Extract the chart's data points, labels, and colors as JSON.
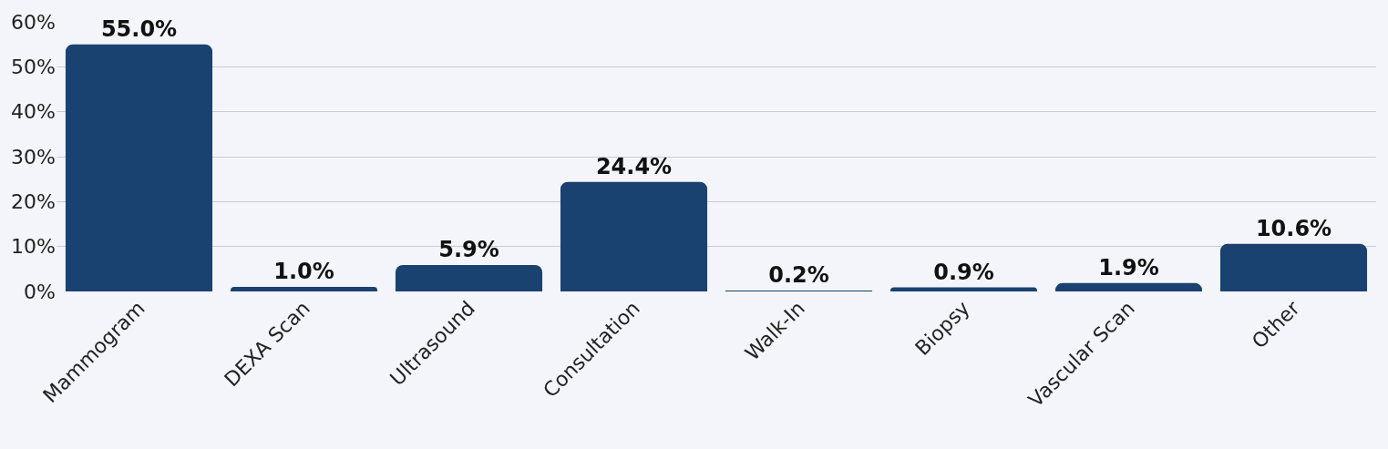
{
  "chart_data": {
    "type": "bar",
    "categories": [
      "Mammogram",
      "DEXA Scan",
      "Ultrasound",
      "Consultation",
      "Walk-In",
      "Biopsy",
      "Vascular Scan",
      "Other"
    ],
    "values": [
      55.0,
      1.0,
      5.9,
      24.4,
      0.2,
      0.9,
      1.9,
      10.6
    ],
    "value_labels": [
      "55.0%",
      "1.0%",
      "5.9%",
      "24.4%",
      "0.2%",
      "0.9%",
      "1.9%",
      "10.6%"
    ],
    "color": "#1a4270",
    "ylim": [
      0,
      60
    ],
    "yticks": [
      {
        "value": 0,
        "label": "0%"
      },
      {
        "value": 10,
        "label": "10%"
      },
      {
        "value": 20,
        "label": "20%"
      },
      {
        "value": 30,
        "label": "30%"
      },
      {
        "value": 40,
        "label": "40%"
      },
      {
        "value": 50,
        "label": "50%"
      },
      {
        "value": 60,
        "label": "60%"
      }
    ],
    "grid": "y"
  }
}
